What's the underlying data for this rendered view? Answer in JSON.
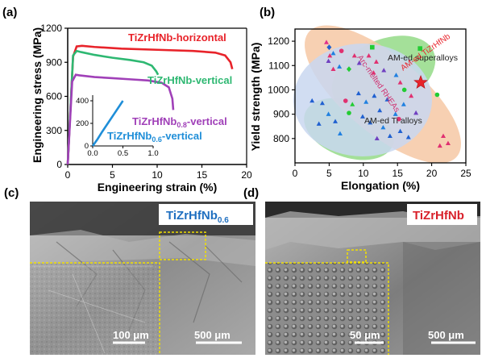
{
  "panels": {
    "a": "(a)",
    "b": "(b)",
    "c": "(c)",
    "d": "(d)"
  },
  "chart_data": [
    {
      "panel": "a",
      "type": "line",
      "xlabel": "Engineering strain (%)",
      "ylabel": "Engineering stress (MPa)",
      "xlim": [
        0,
        20
      ],
      "ylim": [
        0,
        1200
      ],
      "xticks": [
        "0",
        "5",
        "10",
        "15",
        "20"
      ],
      "yticks": [
        "0",
        "300",
        "600",
        "900",
        "1200"
      ],
      "grid": false,
      "series": [
        {
          "name": "TiZrHfNb-horizontal",
          "color": "#e8232a",
          "x": [
            0,
            0.6,
            1.0,
            1.6,
            3,
            6,
            10,
            14,
            16.5,
            17.6,
            18.2,
            18.4
          ],
          "y": [
            0,
            950,
            1040,
            1045,
            1035,
            1020,
            1010,
            1000,
            985,
            960,
            900,
            840
          ]
        },
        {
          "name": "TiZrHfNb-vertical",
          "color": "#2eb872",
          "x": [
            0,
            0.6,
            1.0,
            1.5,
            3,
            5,
            7,
            8.5,
            9.4,
            9.9,
            10.1
          ],
          "y": [
            0,
            960,
            1000,
            990,
            965,
            940,
            920,
            900,
            870,
            820,
            790
          ]
        },
        {
          "name": "TiZrHfNb0.8-vertical",
          "color": "#a040b8",
          "x": [
            0,
            0.5,
            0.9,
            1.3,
            3,
            5,
            7,
            9,
            10.5,
            11.3,
            11.7,
            11.8
          ],
          "y": [
            0,
            730,
            790,
            785,
            770,
            760,
            750,
            740,
            720,
            680,
            580,
            480
          ]
        },
        {
          "name": "TiZrHfNb0.6-vertical",
          "color": "#1f8ed8",
          "x": [
            0,
            0.08,
            0.15,
            0.25,
            0.35,
            0.45,
            0.5
          ],
          "y": [
            0,
            60,
            120,
            200,
            280,
            360,
            400
          ]
        }
      ],
      "inset": {
        "xlim": [
          0,
          1.0
        ],
        "ylim": [
          0,
          450
        ],
        "xticks": [
          "0.0",
          "0.5",
          "1.0"
        ],
        "yticks": [
          "0",
          "200",
          "400"
        ]
      },
      "labels": {
        "h": "TiZrHfNb-horizontal",
        "v": "TiZrHfNb-vertical",
        "v08_main": "TiZrHfNb",
        "v08_sub": "0.8",
        "v08_tail": "-vertical",
        "v06_main": "TiZrHfNb",
        "v06_sub": "0.6",
        "v06_tail": "-vertical"
      }
    },
    {
      "panel": "b",
      "type": "scatter",
      "xlabel": "Elongation (%)",
      "ylabel": "Yield strength (MPa)",
      "xlim": [
        0,
        25
      ],
      "ylim": [
        700,
        1250
      ],
      "xticks": [
        "0",
        "5",
        "10",
        "15",
        "20",
        "25"
      ],
      "yticks": [
        "800",
        "900",
        "1000",
        "1100",
        "1200"
      ],
      "grid": false,
      "regions": [
        {
          "label": "AM-ed superalloys",
          "color": "#6fcf5e"
        },
        {
          "label": "AM-ed Ti alloys",
          "color": "#6fcf5e"
        },
        {
          "label": "Arc-melted RHEAs",
          "color": "#f7c7a0"
        },
        {
          "label": "AM-ed TiZrHfNb",
          "color": "#e8232a"
        }
      ],
      "star": {
        "x": 18.4,
        "y": 1030,
        "color": "#e8232a"
      },
      "points": [
        {
          "x": 4.6,
          "y": 1195,
          "c": "#e0308a",
          "m": "tri"
        },
        {
          "x": 5.0,
          "y": 1175,
          "c": "#2060d0",
          "m": "dia"
        },
        {
          "x": 5.1,
          "y": 1140,
          "c": "#e03070",
          "m": "tri"
        },
        {
          "x": 5.6,
          "y": 1150,
          "c": "#2080e0",
          "m": "tri"
        },
        {
          "x": 4.9,
          "y": 1118,
          "c": "#7040c0",
          "m": "tri"
        },
        {
          "x": 5.6,
          "y": 1085,
          "c": "#e03070",
          "m": "tri"
        },
        {
          "x": 6.8,
          "y": 1160,
          "c": "#e03070",
          "m": "dot"
        },
        {
          "x": 6.5,
          "y": 1095,
          "c": "#2080e0",
          "m": "tri"
        },
        {
          "x": 8.7,
          "y": 1140,
          "c": "#e03070",
          "m": "tri"
        },
        {
          "x": 9.4,
          "y": 1110,
          "c": "#7040c0",
          "m": "tri"
        },
        {
          "x": 7.9,
          "y": 1085,
          "c": "#22cc33",
          "m": "dia"
        },
        {
          "x": 10.8,
          "y": 1140,
          "c": "#e03070",
          "m": "tri"
        },
        {
          "x": 11.3,
          "y": 1175,
          "c": "#22cc33",
          "m": "sq"
        },
        {
          "x": 11.9,
          "y": 1115,
          "c": "#e03070",
          "m": "tri"
        },
        {
          "x": 13.0,
          "y": 1080,
          "c": "#7040c0",
          "m": "tri"
        },
        {
          "x": 11.5,
          "y": 1070,
          "c": "#e03070",
          "m": "tri"
        },
        {
          "x": 14.8,
          "y": 1060,
          "c": "#2080e0",
          "m": "tri"
        },
        {
          "x": 15.4,
          "y": 1030,
          "c": "#e03070",
          "m": "tri"
        },
        {
          "x": 16.0,
          "y": 1000,
          "c": "#22cc33",
          "m": "dot"
        },
        {
          "x": 17.0,
          "y": 975,
          "c": "#e03070",
          "m": "tri"
        },
        {
          "x": 18.3,
          "y": 1170,
          "c": "#22cc33",
          "m": "sq"
        },
        {
          "x": 20.8,
          "y": 980,
          "c": "#22cc33",
          "m": "dot"
        },
        {
          "x": 2.5,
          "y": 955,
          "c": "#2060d0",
          "m": "tri"
        },
        {
          "x": 4.0,
          "y": 945,
          "c": "#2060d0",
          "m": "tri"
        },
        {
          "x": 3.5,
          "y": 860,
          "c": "#2060d0",
          "m": "tri"
        },
        {
          "x": 4.9,
          "y": 900,
          "c": "#2080e0",
          "m": "tri"
        },
        {
          "x": 5.9,
          "y": 870,
          "c": "#2060d0",
          "m": "tri"
        },
        {
          "x": 6.6,
          "y": 820,
          "c": "#2080e0",
          "m": "tri"
        },
        {
          "x": 7.4,
          "y": 955,
          "c": "#e03070",
          "m": "dot"
        },
        {
          "x": 7.9,
          "y": 905,
          "c": "#22cc33",
          "m": "dot"
        },
        {
          "x": 8.4,
          "y": 940,
          "c": "#22cc33",
          "m": "tri"
        },
        {
          "x": 9.3,
          "y": 985,
          "c": "#2060d0",
          "m": "tri"
        },
        {
          "x": 9.9,
          "y": 890,
          "c": "#2060d0",
          "m": "tri"
        },
        {
          "x": 10.4,
          "y": 950,
          "c": "#2080e0",
          "m": "tri"
        },
        {
          "x": 11.0,
          "y": 865,
          "c": "#2060d0",
          "m": "tri"
        },
        {
          "x": 11.6,
          "y": 975,
          "c": "#2060d0",
          "m": "tri"
        },
        {
          "x": 12.4,
          "y": 915,
          "c": "#2060d0",
          "m": "tri"
        },
        {
          "x": 12.9,
          "y": 845,
          "c": "#2080e0",
          "m": "tri"
        },
        {
          "x": 13.5,
          "y": 960,
          "c": "#2060d0",
          "m": "tri"
        },
        {
          "x": 13.9,
          "y": 810,
          "c": "#2060d0",
          "m": "tri"
        },
        {
          "x": 14.7,
          "y": 900,
          "c": "#2080e0",
          "m": "tri"
        },
        {
          "x": 15.4,
          "y": 830,
          "c": "#2060d0",
          "m": "tri"
        },
        {
          "x": 15.9,
          "y": 940,
          "c": "#2080e0",
          "m": "tri"
        },
        {
          "x": 16.6,
          "y": 805,
          "c": "#2060d0",
          "m": "tri"
        },
        {
          "x": 15.2,
          "y": 880,
          "c": "#e03070",
          "m": "dot"
        },
        {
          "x": 17.7,
          "y": 905,
          "c": "#7040c0",
          "m": "tri"
        },
        {
          "x": 12.0,
          "y": 800,
          "c": "#7040c0",
          "m": "tri"
        },
        {
          "x": 21.7,
          "y": 810,
          "c": "#e03070",
          "m": "tri"
        },
        {
          "x": 22.4,
          "y": 780,
          "c": "#e03070",
          "m": "tri"
        },
        {
          "x": 21.2,
          "y": 770,
          "c": "#e03070",
          "m": "tri"
        }
      ]
    }
  ],
  "micrographs": {
    "c": {
      "label_main": "TiZrHfNb",
      "label_sub": "0.6",
      "label_color": "#1f6fc0",
      "scale_inset": "100 μm",
      "scale_main": "500 μm"
    },
    "d": {
      "label_main": "TiZrHfNb",
      "label_sub": "",
      "label_color": "#d8202a",
      "scale_inset": "50 μm",
      "scale_main": "500 μm"
    }
  }
}
